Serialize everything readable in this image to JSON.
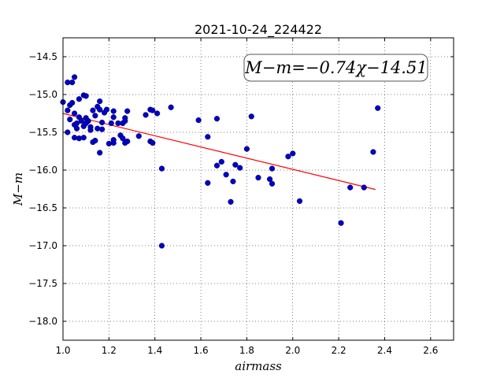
{
  "chart_data": {
    "type": "scatter",
    "title": "2021-10-24_224422",
    "xlabel": "airmass",
    "ylabel": "M−m",
    "xlim": [
      1.0,
      2.7
    ],
    "ylim": [
      -18.25,
      -14.25
    ],
    "y_inverted": true,
    "grid": true,
    "x_ticks": [
      1.0,
      1.2,
      1.4,
      1.6,
      1.8,
      2.0,
      2.2,
      2.4,
      2.6
    ],
    "x_tick_labels": [
      "1.0",
      "1.2",
      "1.4",
      "1.6",
      "1.8",
      "2.0",
      "2.2",
      "2.4",
      "2.6"
    ],
    "y_ticks": [
      -14.5,
      -15.0,
      -15.5,
      -16.0,
      -16.5,
      -17.0,
      -17.5,
      -18.0
    ],
    "y_tick_labels": [
      "−14.5",
      "−15.0",
      "−15.5",
      "−16.0",
      "−16.5",
      "−17.0",
      "−17.5",
      "−18.0"
    ],
    "annotation": "M−m=−0.74χ−14.51",
    "fit": {
      "slope": -0.74,
      "intercept": -14.51,
      "x_range": [
        1.0,
        2.36
      ],
      "color": "#ff0000"
    },
    "marker_color": "#0000cc",
    "points": [
      [
        1.0,
        -15.1
      ],
      [
        1.02,
        -14.84
      ],
      [
        1.04,
        -14.84
      ],
      [
        1.05,
        -14.77
      ],
      [
        1.03,
        -15.14
      ],
      [
        1.04,
        -15.11
      ],
      [
        1.07,
        -15.06
      ],
      [
        1.09,
        -15.01
      ],
      [
        1.1,
        -15.02
      ],
      [
        1.02,
        -15.21
      ],
      [
        1.03,
        -15.33
      ],
      [
        1.05,
        -15.25
      ],
      [
        1.05,
        -15.4
      ],
      [
        1.06,
        -15.45
      ],
      [
        1.07,
        -15.3
      ],
      [
        1.08,
        -15.35
      ],
      [
        1.1,
        -15.31
      ],
      [
        1.11,
        -15.35
      ],
      [
        1.02,
        -15.5
      ],
      [
        1.05,
        -15.57
      ],
      [
        1.07,
        -15.58
      ],
      [
        1.09,
        -15.57
      ],
      [
        1.06,
        -15.38
      ],
      [
        1.09,
        -15.42
      ],
      [
        1.1,
        -15.38
      ],
      [
        1.12,
        -15.43
      ],
      [
        1.13,
        -15.21
      ],
      [
        1.14,
        -15.28
      ],
      [
        1.15,
        -15.16
      ],
      [
        1.16,
        -15.09
      ],
      [
        1.16,
        -15.2
      ],
      [
        1.17,
        -15.37
      ],
      [
        1.18,
        -15.24
      ],
      [
        1.19,
        -15.2
      ],
      [
        1.15,
        -15.45
      ],
      [
        1.17,
        -15.46
      ],
      [
        1.12,
        -15.47
      ],
      [
        1.13,
        -15.63
      ],
      [
        1.14,
        -15.61
      ],
      [
        1.16,
        -15.77
      ],
      [
        1.2,
        -15.65
      ],
      [
        1.21,
        -15.38
      ],
      [
        1.22,
        -15.3
      ],
      [
        1.22,
        -15.22
      ],
      [
        1.22,
        -15.6
      ],
      [
        1.22,
        -15.64
      ],
      [
        1.24,
        -15.38
      ],
      [
        1.25,
        -15.54
      ],
      [
        1.26,
        -15.58
      ],
      [
        1.26,
        -15.38
      ],
      [
        1.27,
        -15.31
      ],
      [
        1.27,
        -15.35
      ],
      [
        1.28,
        -15.22
      ],
      [
        1.27,
        -15.64
      ],
      [
        1.28,
        -15.62
      ],
      [
        1.33,
        -15.55
      ],
      [
        1.36,
        -15.27
      ],
      [
        1.38,
        -15.2
      ],
      [
        1.39,
        -15.21
      ],
      [
        1.41,
        -15.25
      ],
      [
        1.38,
        -15.62
      ],
      [
        1.39,
        -15.64
      ],
      [
        1.47,
        -15.17
      ],
      [
        1.43,
        -15.98
      ],
      [
        1.43,
        -17.0
      ],
      [
        1.59,
        -15.34
      ],
      [
        1.63,
        -15.56
      ],
      [
        1.67,
        -15.32
      ],
      [
        1.63,
        -16.17
      ],
      [
        1.67,
        -15.94
      ],
      [
        1.69,
        -15.89
      ],
      [
        1.71,
        -16.06
      ],
      [
        1.73,
        -16.42
      ],
      [
        1.74,
        -16.15
      ],
      [
        1.75,
        -15.93
      ],
      [
        1.77,
        -15.97
      ],
      [
        1.8,
        -15.72
      ],
      [
        1.82,
        -15.29
      ],
      [
        1.85,
        -16.1
      ],
      [
        1.9,
        -16.12
      ],
      [
        1.91,
        -16.18
      ],
      [
        1.91,
        -15.98
      ],
      [
        1.98,
        -15.82
      ],
      [
        2.0,
        -15.78
      ],
      [
        2.03,
        -16.41
      ],
      [
        2.21,
        -16.7
      ],
      [
        2.25,
        -16.23
      ],
      [
        2.31,
        -16.23
      ],
      [
        2.35,
        -15.76
      ],
      [
        2.37,
        -15.18
      ]
    ]
  }
}
